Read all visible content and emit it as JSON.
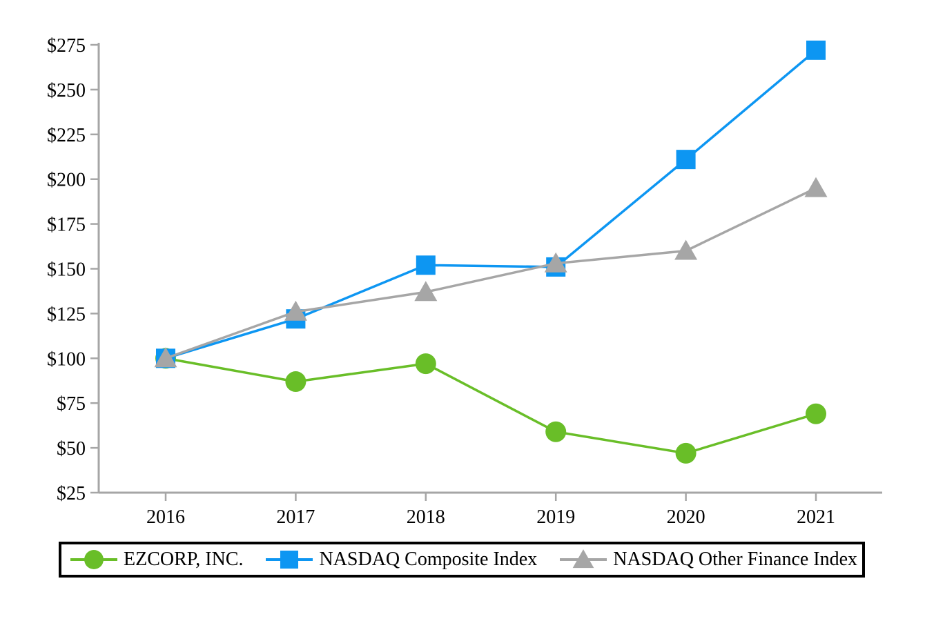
{
  "chart_data": {
    "type": "line",
    "title": "",
    "xlabel": "",
    "ylabel": "",
    "categories": [
      "2016",
      "2017",
      "2018",
      "2019",
      "2020",
      "2021"
    ],
    "series": [
      {
        "name": "EZCORP, INC.",
        "color": "#69BE28",
        "marker": "circle",
        "values": [
          100,
          87,
          97,
          59,
          47,
          69
        ]
      },
      {
        "name": "NASDAQ Composite Index",
        "color": "#0D96F2",
        "marker": "square",
        "values": [
          100,
          122,
          152,
          151,
          211,
          272
        ]
      },
      {
        "name": "NASDAQ Other Finance Index",
        "color": "#A6A6A6",
        "marker": "triangle",
        "values": [
          100,
          126,
          137,
          153,
          160,
          195
        ]
      }
    ],
    "y_ticks": [
      275,
      250,
      225,
      200,
      175,
      150,
      125,
      100,
      75,
      50,
      25
    ],
    "y_tick_prefix": "$",
    "ylim": [
      25,
      275
    ],
    "grid": false,
    "legend_position": "bottom",
    "axis_color": "#A6A6A6",
    "text_color": "#000000",
    "background_color": "#FFFFFF",
    "legend_border_color": "#000000"
  }
}
